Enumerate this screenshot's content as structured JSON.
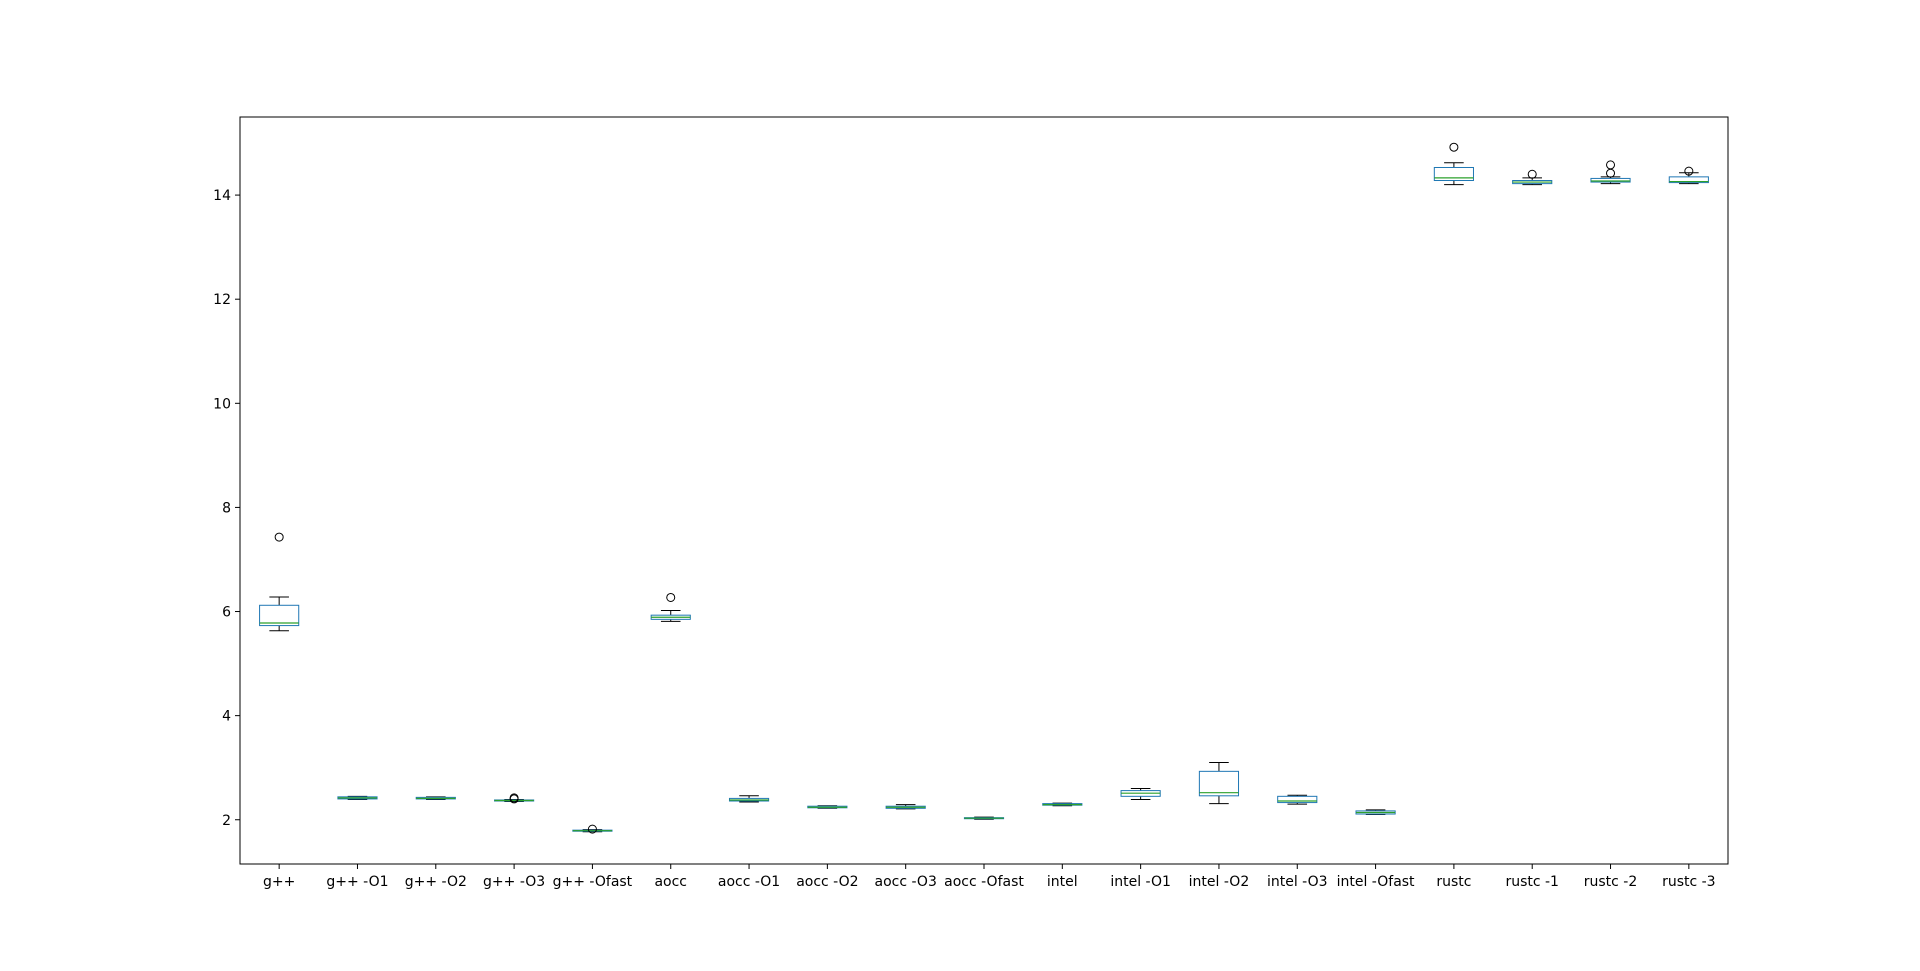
{
  "chart_data": {
    "type": "boxplot",
    "title": "",
    "xlabel": "",
    "ylabel": "",
    "ylim": [
      1.15,
      15.5
    ],
    "yticks": [
      2,
      4,
      6,
      8,
      10,
      12,
      14
    ],
    "grid": false,
    "legend": "none",
    "colors": {
      "box": "#1f77b4",
      "median": "#2ca02c",
      "whisker": "#000000",
      "flier": "#000000"
    },
    "categories": [
      "g++",
      "g++ -O1",
      "g++ -O2",
      "g++ -O3",
      "g++ -Ofast",
      "aocc",
      "aocc -O1",
      "aocc -O2",
      "aocc -O3",
      "aocc -Ofast",
      "intel",
      "intel -O1",
      "intel -O2",
      "intel -O3",
      "intel -Ofast",
      "rustc",
      "rustc -1",
      "rustc -2",
      "rustc -3"
    ],
    "boxes": [
      {
        "whislo": 5.63,
        "q1": 5.73,
        "med": 5.78,
        "q3": 6.12,
        "whishi": 6.28,
        "fliers": [
          7.43
        ]
      },
      {
        "whislo": 2.39,
        "q1": 2.4,
        "med": 2.42,
        "q3": 2.44,
        "whishi": 2.45,
        "fliers": []
      },
      {
        "whislo": 2.39,
        "q1": 2.4,
        "med": 2.41,
        "q3": 2.43,
        "whishi": 2.44,
        "fliers": []
      },
      {
        "whislo": 2.35,
        "q1": 2.36,
        "med": 2.37,
        "q3": 2.38,
        "whishi": 2.39,
        "fliers": [
          2.4,
          2.42
        ]
      },
      {
        "whislo": 1.77,
        "q1": 1.78,
        "med": 1.79,
        "q3": 1.8,
        "whishi": 1.81,
        "fliers": [
          1.82
        ]
      },
      {
        "whislo": 5.81,
        "q1": 5.85,
        "med": 5.89,
        "q3": 5.93,
        "whishi": 6.02,
        "fliers": [
          6.27
        ]
      },
      {
        "whislo": 2.34,
        "q1": 2.36,
        "med": 2.38,
        "q3": 2.41,
        "whishi": 2.46,
        "fliers": []
      },
      {
        "whislo": 2.22,
        "q1": 2.23,
        "med": 2.24,
        "q3": 2.26,
        "whishi": 2.27,
        "fliers": []
      },
      {
        "whislo": 2.21,
        "q1": 2.22,
        "med": 2.24,
        "q3": 2.26,
        "whishi": 2.29,
        "fliers": []
      },
      {
        "whislo": 2.01,
        "q1": 2.02,
        "med": 2.03,
        "q3": 2.04,
        "whishi": 2.05,
        "fliers": []
      },
      {
        "whislo": 2.27,
        "q1": 2.28,
        "med": 2.29,
        "q3": 2.31,
        "whishi": 2.32,
        "fliers": []
      },
      {
        "whislo": 2.39,
        "q1": 2.45,
        "med": 2.51,
        "q3": 2.56,
        "whishi": 2.6,
        "fliers": []
      },
      {
        "whislo": 2.31,
        "q1": 2.46,
        "med": 2.52,
        "q3": 2.93,
        "whishi": 3.1,
        "fliers": []
      },
      {
        "whislo": 2.3,
        "q1": 2.33,
        "med": 2.36,
        "q3": 2.45,
        "whishi": 2.47,
        "fliers": []
      },
      {
        "whislo": 2.1,
        "q1": 2.11,
        "med": 2.14,
        "q3": 2.17,
        "whishi": 2.19,
        "fliers": []
      },
      {
        "whislo": 14.2,
        "q1": 14.28,
        "med": 14.33,
        "q3": 14.53,
        "whishi": 14.62,
        "fliers": [
          14.92
        ]
      },
      {
        "whislo": 14.2,
        "q1": 14.22,
        "med": 14.25,
        "q3": 14.28,
        "whishi": 14.33,
        "fliers": [
          14.4
        ]
      },
      {
        "whislo": 14.22,
        "q1": 14.25,
        "med": 14.27,
        "q3": 14.32,
        "whishi": 14.35,
        "fliers": [
          14.42,
          14.58
        ]
      },
      {
        "whislo": 14.22,
        "q1": 14.24,
        "med": 14.26,
        "q3": 14.35,
        "whishi": 14.43,
        "fliers": [
          14.46
        ]
      }
    ]
  }
}
